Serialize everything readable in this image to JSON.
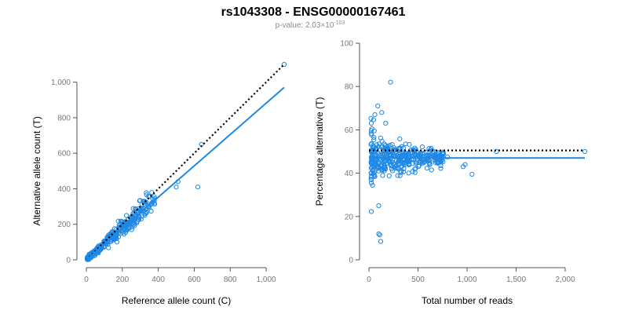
{
  "header": {
    "title": "rs1043308 - ENSG00000167461",
    "pvalue_prefix": "p-value: 2.03×10",
    "pvalue_exp": "-103"
  },
  "colors": {
    "points": "#1e88e5",
    "fit": "#1e88e5",
    "reference_line": "#000000"
  },
  "chart_data": [
    {
      "type": "scatter",
      "name": "allele-count",
      "xlabel": "Reference allele count (C)",
      "ylabel": "Alternative allele count (T)",
      "xlim": [
        0,
        1100
      ],
      "ylim": [
        0,
        1100
      ],
      "xticks": [
        0,
        200,
        400,
        600,
        800,
        1000
      ],
      "xtick_labels": [
        "0",
        "200",
        "400",
        "600",
        "800",
        "1,000"
      ],
      "yticks": [
        0,
        200,
        400,
        600,
        800,
        1000
      ],
      "ytick_labels": [
        "0",
        "200",
        "400",
        "600",
        "800",
        "1,000"
      ],
      "grid": false,
      "reference_line": {
        "style": "dotted",
        "from": [
          0,
          0
        ],
        "to": [
          1100,
          1100
        ]
      },
      "fit_line": {
        "style": "solid",
        "from": [
          0,
          0
        ],
        "to": [
          1100,
          970
        ]
      },
      "outliers": [
        [
          1100,
          1100
        ],
        [
          640,
          650
        ],
        [
          620,
          410
        ],
        [
          510,
          440
        ],
        [
          500,
          410
        ]
      ],
      "bulk": {
        "n": 360,
        "x_range": [
          5,
          380
        ],
        "slope": 0.9,
        "noise_sd": 0.12
      }
    },
    {
      "type": "scatter",
      "name": "percentage",
      "xlabel": "Total number of reads",
      "ylabel": "Percentage alternative (T)",
      "xlim": [
        0,
        2200
      ],
      "ylim": [
        0,
        100
      ],
      "xticks": [
        0,
        500,
        1000,
        1500,
        2000
      ],
      "xtick_labels": [
        "0",
        "500",
        "1,000",
        "1,500",
        "2,000"
      ],
      "yticks": [
        0,
        20,
        40,
        60,
        80,
        100
      ],
      "ytick_labels": [
        "0",
        "20",
        "40",
        "60",
        "80",
        "100"
      ],
      "grid": false,
      "reference_line": {
        "style": "dotted",
        "y": 50.5
      },
      "fit_line": {
        "style": "solid",
        "y": 47
      },
      "outliers": [
        [
          2200,
          50
        ],
        [
          1300,
          50
        ],
        [
          1050,
          39.5
        ],
        [
          980,
          44
        ],
        [
          960,
          43
        ],
        [
          220,
          82
        ],
        [
          100,
          12
        ],
        [
          110,
          11.5
        ],
        [
          120,
          8.5
        ],
        [
          100,
          25
        ],
        [
          60,
          67
        ],
        [
          90,
          71
        ],
        [
          130,
          68
        ],
        [
          170,
          63
        ],
        [
          700,
          48.5
        ],
        [
          800,
          47.5
        ]
      ],
      "bulk": {
        "n": 380,
        "x_range": [
          20,
          760
        ],
        "center": 47,
        "spread": 16
      }
    }
  ]
}
